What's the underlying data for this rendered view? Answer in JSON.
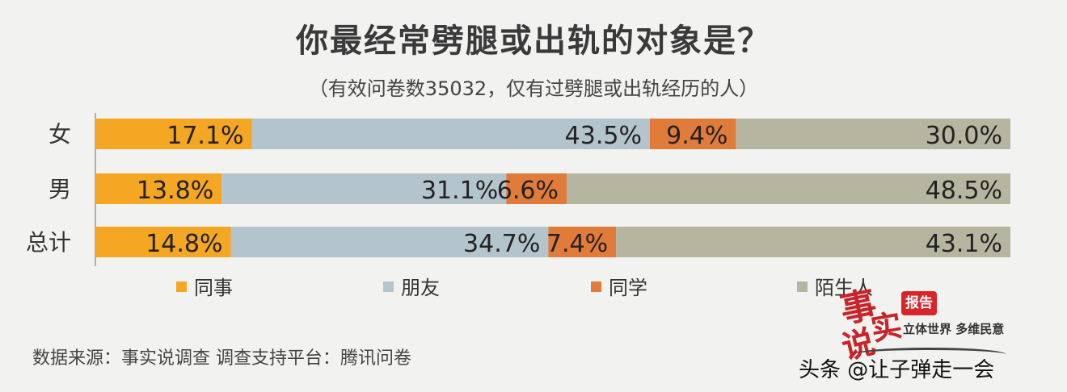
{
  "chart_data": {
    "type": "bar",
    "orientation": "horizontal",
    "stacked": true,
    "title": "你最经常劈腿或出轨的对象是？",
    "subtitle": "（有效问卷数35032，仅有过劈腿或出轨经历的人）",
    "categories": [
      "女",
      "男",
      "总计"
    ],
    "series": [
      {
        "name": "同事",
        "color": "#f5a623",
        "values": [
          17.1,
          13.8,
          14.8
        ],
        "labels": [
          "17.1%",
          "13.8%",
          "14.8%"
        ]
      },
      {
        "name": "朋友",
        "color": "#b4c4cc",
        "values": [
          43.5,
          31.1,
          34.7
        ],
        "labels": [
          "43.5%",
          "31.1%",
          "34.7%"
        ]
      },
      {
        "name": "同学",
        "color": "#e07b39",
        "values": [
          9.4,
          6.6,
          7.4
        ],
        "labels": [
          "9.4%",
          "6.6%",
          "7.4%"
        ]
      },
      {
        "name": "陌生人",
        "color": "#b6b6a0",
        "values": [
          30.0,
          48.5,
          43.1
        ],
        "labels": [
          "30.0%",
          "48.5%",
          "43.1%"
        ]
      }
    ],
    "xlim": [
      0,
      100
    ],
    "grid": false,
    "legend_position": "bottom"
  },
  "footer": {
    "source": "数据来源：事实说调查 调查支持平台：腾讯问卷",
    "watermark": "头条 @让子弹走一会"
  },
  "logo": {
    "stamp": "报告",
    "char1": "事",
    "char2": "实",
    "char3": "说",
    "slogan": "立体世界 多维民意"
  }
}
